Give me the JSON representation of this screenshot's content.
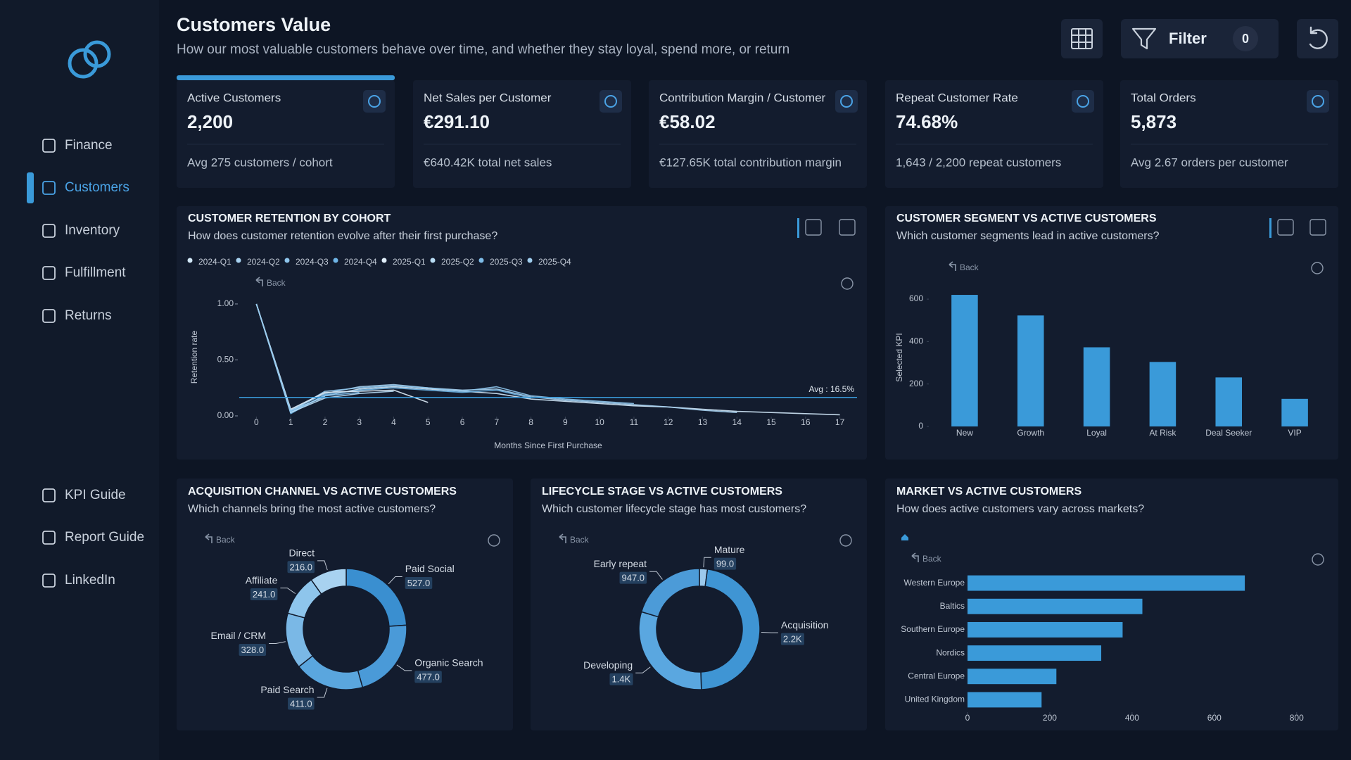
{
  "sidebar": {
    "nav": [
      "Finance",
      "Customers",
      "Inventory",
      "Fulfillment",
      "Returns"
    ],
    "links": [
      "KPI Guide",
      "Report Guide",
      "LinkedIn"
    ]
  },
  "header": {
    "title": "Customers Value",
    "subtitle": "How our most valuable customers behave over time, and whether they stay loyal, spend more, or return",
    "filter_label": "Filter",
    "filter_count": 0
  },
  "kpis": [
    {
      "label": "Active Customers",
      "value": "2,200",
      "note": "Avg 275 customers / cohort"
    },
    {
      "label": "Net Sales per Customer",
      "value": "€291.10",
      "note": "€640.42K total net sales"
    },
    {
      "label": "Contribution Margin / Customer",
      "value": "€58.02",
      "note": "€127.65K total contribution margin"
    },
    {
      "label": "Repeat Customer Rate",
      "value": "74.68%",
      "note": "1,643 / 2,200 repeat customers"
    },
    {
      "label": "Total Orders",
      "value": "5,873",
      "note": "Avg 2.67 orders per customer"
    }
  ],
  "chart_data": [
    {
      "type": "line",
      "title": "CUSTOMER RETENTION BY COHORT",
      "subtitle": "How does customer retention evolve after their first purchase?",
      "back": "Back",
      "y_label": "Retention rate",
      "x_label": "Months Since First Purchase",
      "x": [
        0,
        1,
        2,
        3,
        4,
        5,
        6,
        7,
        8,
        9,
        10,
        11,
        12,
        13,
        14,
        15,
        16,
        17
      ],
      "xlim": [
        -0.5,
        17.5
      ],
      "xticks": [
        0,
        1,
        2,
        3,
        4,
        5,
        6,
        7,
        8,
        9,
        10,
        11,
        12,
        13,
        14,
        15,
        16,
        17
      ],
      "ylim": [
        0,
        1.05
      ],
      "yticks": [
        {
          "value": 0,
          "label": "0.00"
        },
        {
          "value": 0.5,
          "label": "0.50"
        },
        {
          "value": 1,
          "label": "1.00"
        }
      ],
      "avg": {
        "value": 0.165,
        "label": "Avg : 16.5%",
        "color": "#3a9ad9"
      },
      "series": [
        {
          "name": "2024-Q1",
          "color": "#d2e8f8",
          "values": [
            1.0,
            0.03,
            0.18,
            0.24,
            0.26,
            0.24,
            0.22,
            0.2,
            0.15,
            0.13,
            0.11,
            0.09,
            0.08,
            0.06,
            0.04,
            0.03,
            0.02,
            0.01
          ]
        },
        {
          "name": "2024-Q2",
          "color": "#a9d3f2",
          "values": [
            1.0,
            0.05,
            0.2,
            0.26,
            0.28,
            0.25,
            0.23,
            0.24,
            0.17,
            0.14,
            0.12,
            0.1,
            0.08,
            0.05,
            0.03,
            null,
            null,
            null
          ]
        },
        {
          "name": "2024-Q3",
          "color": "#8ec5ec",
          "values": [
            1.0,
            0.04,
            0.22,
            0.25,
            0.27,
            0.25,
            0.22,
            0.26,
            0.18,
            0.15,
            0.13,
            0.11,
            null,
            null,
            null,
            null,
            null,
            null
          ]
        },
        {
          "name": "2024-Q4",
          "color": "#6fb5e6",
          "values": [
            1.0,
            0.02,
            0.19,
            0.23,
            0.25,
            0.23,
            0.21,
            0.23,
            0.16,
            null,
            null,
            null,
            null,
            null,
            null,
            null,
            null,
            null
          ]
        },
        {
          "name": "2025-Q1",
          "color": "#e0eef9",
          "values": [
            1.0,
            0.06,
            0.21,
            0.22,
            0.23,
            0.12,
            null,
            null,
            null,
            null,
            null,
            null,
            null,
            null,
            null,
            null,
            null,
            null
          ]
        },
        {
          "name": "2025-Q2",
          "color": "#b8dcf4",
          "values": [
            1.0,
            0.03,
            0.16,
            0.2,
            0.22,
            null,
            null,
            null,
            null,
            null,
            null,
            null,
            null,
            null,
            null,
            null,
            null,
            null
          ]
        },
        {
          "name": "2025-Q3",
          "color": "#7fbde9",
          "values": [
            1.0,
            0.04,
            0.18,
            0.21,
            null,
            null,
            null,
            null,
            null,
            null,
            null,
            null,
            null,
            null,
            null,
            null,
            null,
            null
          ]
        },
        {
          "name": "2025-Q4",
          "color": "#9fcdee",
          "values": [
            1.0,
            0.05,
            0.17,
            null,
            null,
            null,
            null,
            null,
            null,
            null,
            null,
            null,
            null,
            null,
            null,
            null,
            null,
            null
          ]
        }
      ]
    },
    {
      "type": "bar",
      "title": "CUSTOMER SEGMENT VS ACTIVE CUSTOMERS",
      "subtitle": "Which customer segments lead in active customers?",
      "back": "Back",
      "y_label": "Selected KPI",
      "categories": [
        "New",
        "Growth",
        "Loyal",
        "At Risk",
        "Deal Seeker",
        "VIP"
      ],
      "values": [
        620,
        523,
        373,
        304,
        231,
        130
      ],
      "color": "#3a9ad9",
      "ylim": [
        0,
        650
      ],
      "yticks": [
        0,
        200,
        400,
        600
      ]
    },
    {
      "type": "donut",
      "title": "ACQUISITION CHANNEL VS ACTIVE CUSTOMERS",
      "subtitle": "Which channels bring the most active customers?",
      "back": "Back",
      "categories": [
        "Paid Social",
        "Organic Search",
        "Paid Search",
        "Email / CRM",
        "Affiliate",
        "Direct"
      ],
      "values": [
        527,
        477,
        411,
        328,
        241,
        216
      ],
      "value_labels": [
        "527.0",
        "477.0",
        "411.0",
        "328.0",
        "241.0",
        "216.0"
      ],
      "colors": [
        "#3a8fd0",
        "#4a9ad8",
        "#5aa6de",
        "#7ab8e6",
        "#8ec5ec",
        "#a8d2f0"
      ]
    },
    {
      "type": "donut",
      "title": "LIFECYCLE STAGE VS ACTIVE CUSTOMERS",
      "subtitle": "Which customer lifecycle stage has most customers?",
      "back": "Back",
      "categories": [
        "Mature",
        "Acquisition",
        "Developing",
        "Early repeat"
      ],
      "values": [
        99,
        2200,
        1400,
        947
      ],
      "value_labels": [
        "99.0",
        "2.2K",
        "1.4K",
        "947.0"
      ],
      "colors": [
        "#9cc9ec",
        "#3f95d4",
        "#5aa7e0",
        "#4c9bd8"
      ]
    },
    {
      "type": "bar",
      "orientation": "horizontal",
      "title": "MARKET VS ACTIVE CUSTOMERS",
      "subtitle": "How does active customers vary across markets?",
      "back": "Back",
      "categories": [
        "Western Europe",
        "Baltics",
        "Southern Europe",
        "Nordics",
        "Central Europe",
        "United Kingdom"
      ],
      "values": [
        674,
        425,
        377,
        325,
        216,
        180
      ],
      "color": "#3a9ad9",
      "xlim": [
        0,
        850
      ],
      "xticks": [
        0,
        200,
        400,
        600,
        800
      ]
    }
  ]
}
